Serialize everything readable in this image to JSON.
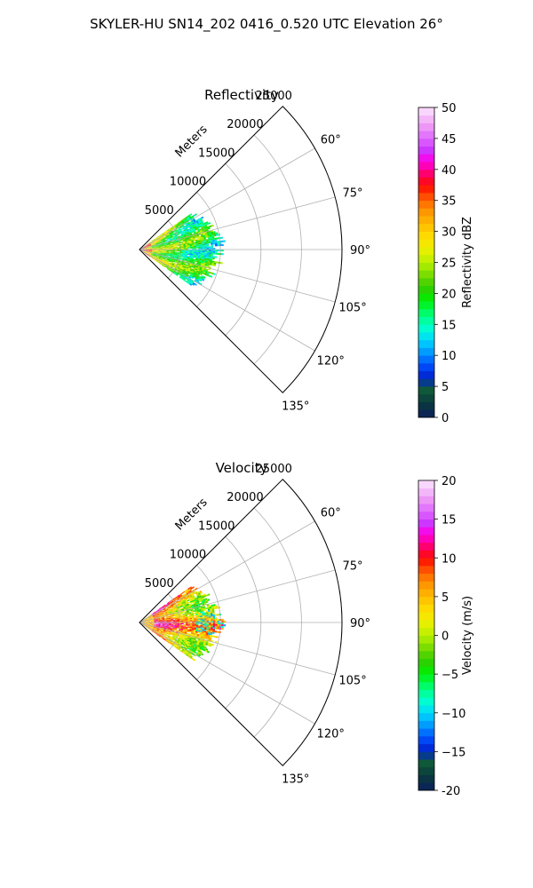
{
  "figure": {
    "title": "SKYLER-HU  SN14_202  0416_0.520 UTC Elevation 26°"
  },
  "chart_data": [
    {
      "type": "heatmap",
      "projection": "polar-sector",
      "title": "Reflectivity",
      "radial_label": "Meters",
      "r_ticks": [
        5000,
        10000,
        15000,
        20000,
        25000
      ],
      "r_tick_labels": [
        "5000",
        "10000",
        "15000",
        "20000",
        "25000"
      ],
      "rlim": [
        0,
        25000
      ],
      "theta_ticks": [
        60,
        75,
        90,
        105,
        120,
        135
      ],
      "theta_tick_labels": [
        "60°",
        "75°",
        "90°",
        "105°",
        "120°",
        "135°"
      ],
      "theta_lim": [
        45,
        135
      ],
      "grid": true,
      "colorbar": {
        "label": "Reflectivity dBZ",
        "ticks": [
          0,
          5,
          10,
          15,
          20,
          25,
          30,
          35,
          40,
          45,
          50
        ],
        "tick_labels": [
          "0",
          "5",
          "10",
          "15",
          "20",
          "25",
          "30",
          "35",
          "40",
          "45",
          "50"
        ],
        "range": [
          0,
          50
        ],
        "levels": 40,
        "colormap": "pyart_HomeyerRainbow"
      },
      "data_extent_m": [
        0,
        10000
      ],
      "data_azimuth_range": [
        55,
        125
      ],
      "dominant_values_range": [
        15,
        30
      ],
      "max_value_approx": 37
    },
    {
      "type": "heatmap",
      "projection": "polar-sector",
      "title": "Velocity",
      "radial_label": "Meters",
      "r_ticks": [
        5000,
        10000,
        15000,
        20000,
        25000
      ],
      "r_tick_labels": [
        "5000",
        "10000",
        "15000",
        "20000",
        "25000"
      ],
      "rlim": [
        0,
        25000
      ],
      "theta_ticks": [
        60,
        75,
        90,
        105,
        120,
        135
      ],
      "theta_tick_labels": [
        "60°",
        "75°",
        "90°",
        "105°",
        "120°",
        "135°"
      ],
      "theta_lim": [
        45,
        135
      ],
      "grid": true,
      "colorbar": {
        "label": "Velocity (m/s)",
        "ticks": [
          -20,
          -15,
          -10,
          -5,
          0,
          5,
          10,
          15,
          20
        ],
        "tick_labels": [
          "-20",
          "−15",
          "−10",
          "−5",
          "0",
          "5",
          "10",
          "15",
          "20"
        ],
        "range": [
          -20,
          20
        ],
        "levels": 40,
        "colormap": "pyart_HomeyerRainbow"
      },
      "data_extent_m": [
        0,
        10000
      ],
      "data_azimuth_range": [
        55,
        125
      ],
      "dominant_values_range": [
        5,
        15
      ],
      "min_value_approx": -12
    }
  ]
}
